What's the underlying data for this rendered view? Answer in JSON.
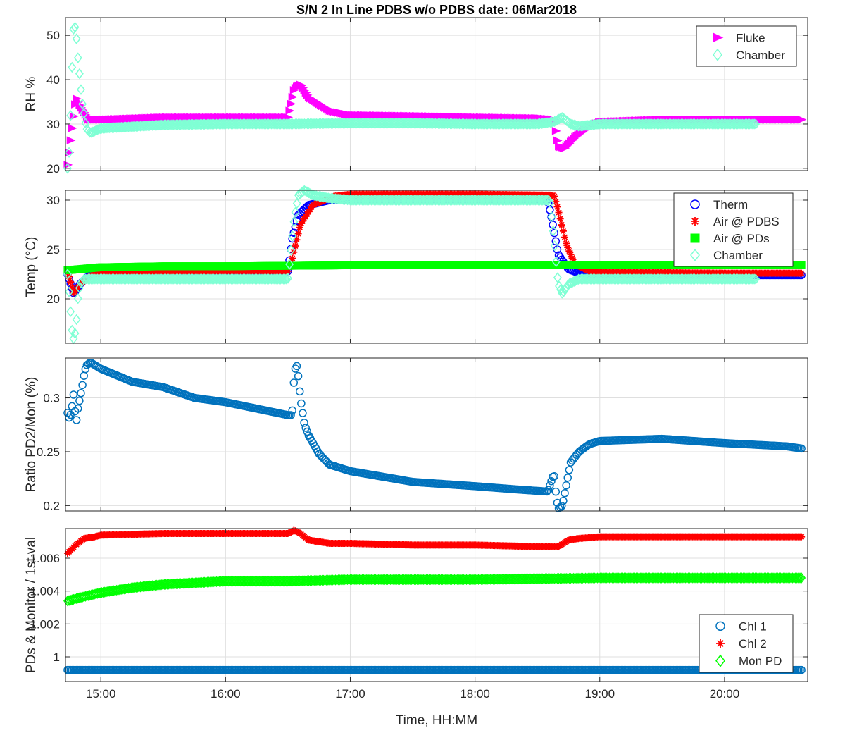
{
  "title": "S/N 2 In Line PDBS w/o PDBS date: 06Mar2018",
  "xlabel": "Time, HH:MM",
  "xticks": [
    "15:00",
    "16:00",
    "17:00",
    "18:00",
    "19:00",
    "20:00"
  ],
  "chart_data": [
    {
      "type": "scatter",
      "ylabel": "RH %",
      "xlim": [
        "14:43",
        "20:40"
      ],
      "ylim": [
        19.5,
        54
      ],
      "yticks": [
        20,
        30,
        40,
        50
      ],
      "grid": true,
      "legend_position": "top-right",
      "series": [
        {
          "name": "Fluke",
          "color": "#ff00ff",
          "marker": "triangle-right",
          "x": [
            "14:44",
            "14:46",
            "14:48",
            "14:50",
            "14:54",
            "15:00",
            "15:30",
            "16:00",
            "16:30",
            "16:33",
            "16:36",
            "16:40",
            "16:50",
            "17:00",
            "17:30",
            "18:00",
            "18:30",
            "18:38",
            "18:40",
            "18:43",
            "18:48",
            "18:55",
            "19:00",
            "19:30",
            "20:00",
            "20:30",
            "20:37"
          ],
          "y": [
            20.8,
            28.5,
            36,
            34,
            31,
            31,
            31.5,
            31.5,
            31.5,
            38,
            39,
            36,
            33,
            32,
            31.8,
            31.5,
            31.3,
            31,
            25,
            24.5,
            27,
            29.5,
            30.5,
            31,
            31,
            31,
            31
          ]
        },
        {
          "name": "Chamber",
          "color": "#7fffd4",
          "marker": "diamond",
          "x": [
            "14:44",
            "14:45",
            "14:46",
            "14:47",
            "14:48",
            "14:49",
            "14:50",
            "14:51",
            "14:52",
            "14:53",
            "14:55",
            "15:00",
            "15:30",
            "16:00",
            "16:30",
            "17:00",
            "17:30",
            "18:00",
            "18:30",
            "18:38",
            "18:42",
            "18:46",
            "18:50",
            "19:00",
            "19:30",
            "20:00",
            "20:15"
          ],
          "y": [
            20,
            25,
            41,
            53,
            51,
            45,
            40,
            35,
            32,
            29,
            28,
            29,
            29.8,
            30,
            30,
            30.2,
            30.2,
            30,
            30,
            30.5,
            31.5,
            30,
            29.5,
            30,
            30,
            30,
            30
          ]
        }
      ]
    },
    {
      "type": "scatter",
      "ylabel": "Temp (°C)",
      "xlim": [
        "14:43",
        "20:40"
      ],
      "ylim": [
        15.5,
        31
      ],
      "yticks": [
        20,
        25,
        30
      ],
      "grid": true,
      "legend_position": "top-right",
      "series": [
        {
          "name": "Therm",
          "color": "#0000ff",
          "marker": "circle",
          "x": [
            "14:44",
            "14:47",
            "14:50",
            "14:55",
            "15:00",
            "16:00",
            "16:30",
            "16:32",
            "16:35",
            "16:40",
            "16:50",
            "17:00",
            "18:00",
            "18:35",
            "18:37",
            "18:40",
            "18:45",
            "18:50",
            "19:00",
            "20:00",
            "20:37"
          ],
          "y": [
            22.5,
            20.5,
            21.5,
            22.5,
            22.7,
            22.8,
            22.8,
            26,
            28.5,
            29.5,
            30,
            30,
            30,
            30,
            28,
            24.5,
            23,
            22.6,
            22.5,
            22.4,
            22.4
          ]
        },
        {
          "name": "Air @ PDBS",
          "color": "#ff0000",
          "marker": "asterisk",
          "x": [
            "14:44",
            "14:47",
            "14:50",
            "14:55",
            "15:00",
            "16:00",
            "16:30",
            "16:32",
            "16:36",
            "16:42",
            "16:52",
            "17:00",
            "18:00",
            "18:38",
            "18:40",
            "18:44",
            "18:48",
            "18:55",
            "19:00",
            "20:00",
            "20:37"
          ],
          "y": [
            22.8,
            20.5,
            21.5,
            22.3,
            22.7,
            22.8,
            22.8,
            24,
            27.5,
            29.5,
            30.4,
            30.6,
            30.6,
            30.5,
            29,
            25.5,
            23.5,
            22.8,
            22.7,
            22.6,
            22.6
          ]
        },
        {
          "name": "Air @ PDs",
          "color": "#00ff00",
          "marker": "square",
          "x": [
            "14:44",
            "15:00",
            "15:30",
            "16:00",
            "17:00",
            "18:00",
            "19:00",
            "20:00",
            "20:37"
          ],
          "y": [
            22.9,
            23.2,
            23.3,
            23.3,
            23.4,
            23.4,
            23.4,
            23.4,
            23.4
          ]
        },
        {
          "name": "Chamber",
          "color": "#7fffd4",
          "marker": "diamond",
          "x": [
            "14:44",
            "14:45",
            "14:46",
            "14:47",
            "14:48",
            "14:49",
            "14:50",
            "14:52",
            "14:55",
            "15:00",
            "16:00",
            "16:30",
            "16:31",
            "16:33",
            "16:35",
            "16:38",
            "16:42",
            "16:50",
            "17:00",
            "18:00",
            "18:36",
            "18:38",
            "18:40",
            "18:42",
            "18:45",
            "18:50",
            "19:00",
            "20:00",
            "20:15"
          ],
          "y": [
            22.5,
            20,
            17,
            15.8,
            17,
            20,
            21.5,
            22,
            22,
            22,
            22,
            22,
            24,
            28,
            30.5,
            31,
            30.5,
            30.2,
            30,
            30,
            30,
            26,
            21.5,
            20.5,
            21.5,
            22,
            22,
            22,
            22
          ]
        }
      ]
    },
    {
      "type": "scatter",
      "ylabel": "Ratio PD2/Mon (%)",
      "xlim": [
        "14:43",
        "20:40"
      ],
      "ylim": [
        0.195,
        0.337
      ],
      "yticks": [
        0.2,
        0.25,
        0.3
      ],
      "grid": true,
      "series": [
        {
          "name": "",
          "color": "#0072bd",
          "marker": "circle",
          "x": [
            "14:44",
            "14:45",
            "14:46",
            "14:47",
            "14:48",
            "14:49",
            "14:50",
            "14:51",
            "14:52",
            "14:53",
            "14:55",
            "15:00",
            "15:15",
            "15:30",
            "15:45",
            "16:00",
            "16:15",
            "16:30",
            "16:32",
            "16:33",
            "16:34",
            "16:35",
            "16:36",
            "16:38",
            "16:40",
            "16:45",
            "16:50",
            "17:00",
            "17:15",
            "17:30",
            "18:00",
            "18:20",
            "18:35",
            "18:38",
            "18:39",
            "18:40",
            "18:42",
            "18:44",
            "18:46",
            "18:50",
            "18:55",
            "19:00",
            "19:30",
            "20:00",
            "20:30",
            "20:37"
          ],
          "y": [
            0.286,
            0.28,
            0.29,
            0.305,
            0.275,
            0.29,
            0.3,
            0.31,
            0.322,
            0.33,
            0.333,
            0.327,
            0.315,
            0.31,
            0.3,
            0.296,
            0.29,
            0.284,
            0.284,
            0.32,
            0.333,
            0.32,
            0.3,
            0.275,
            0.265,
            0.248,
            0.238,
            0.232,
            0.227,
            0.222,
            0.218,
            0.215,
            0.213,
            0.23,
            0.21,
            0.197,
            0.2,
            0.22,
            0.24,
            0.25,
            0.257,
            0.26,
            0.262,
            0.258,
            0.255,
            0.253
          ]
        }
      ]
    },
    {
      "type": "scatter",
      "ylabel": "PDs & Monitor / 1st val",
      "xlim": [
        "14:43",
        "20:40"
      ],
      "ylim": [
        0.9985,
        1.0078
      ],
      "yticks": [
        1,
        1.002,
        1.004,
        1.006
      ],
      "grid": true,
      "legend_position": "bottom-right",
      "series": [
        {
          "name": "Chl 1",
          "color": "#0072bd",
          "marker": "circle",
          "x": [
            "14:44",
            "15:00",
            "16:00",
            "17:00",
            "18:00",
            "19:00",
            "20:00",
            "20:37"
          ],
          "y": [
            0.9992,
            0.9992,
            0.9992,
            0.9992,
            0.9992,
            0.9992,
            0.9992,
            0.9992
          ]
        },
        {
          "name": "Chl 2",
          "color": "#ff0000",
          "marker": "asterisk",
          "x": [
            "14:44",
            "14:48",
            "14:52",
            "14:57",
            "15:00",
            "15:30",
            "16:00",
            "16:30",
            "16:33",
            "16:36",
            "16:40",
            "16:50",
            "17:00",
            "17:30",
            "18:00",
            "18:30",
            "18:40",
            "18:45",
            "18:50",
            "19:00",
            "19:30",
            "20:00",
            "20:37"
          ],
          "y": [
            1.0063,
            1.0068,
            1.0072,
            1.0073,
            1.0074,
            1.0075,
            1.0075,
            1.0075,
            1.0077,
            1.0075,
            1.0071,
            1.0069,
            1.0069,
            1.0068,
            1.0068,
            1.0067,
            1.0067,
            1.0071,
            1.0072,
            1.0073,
            1.0073,
            1.0073,
            1.0073
          ]
        },
        {
          "name": "Mon PD",
          "color": "#00ff00",
          "marker": "diamond",
          "x": [
            "14:44",
            "14:50",
            "15:00",
            "15:15",
            "15:30",
            "16:00",
            "16:30",
            "17:00",
            "17:30",
            "18:00",
            "19:00",
            "20:00",
            "20:37"
          ],
          "y": [
            1.0034,
            1.0036,
            1.0039,
            1.0042,
            1.0044,
            1.0046,
            1.0046,
            1.0047,
            1.0047,
            1.0047,
            1.0048,
            1.0048,
            1.0048
          ]
        }
      ]
    }
  ]
}
